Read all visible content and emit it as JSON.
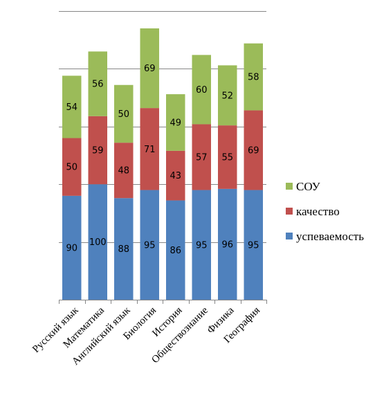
{
  "chart_data": {
    "type": "bar",
    "stacked": true,
    "categories": [
      "Русский язык",
      "Математика",
      "Английский язык",
      "Биология",
      "История",
      "Обществознание",
      "Физика",
      "География"
    ],
    "series": [
      {
        "name": "успеваемость",
        "color": "#4F81BD",
        "values": [
          90,
          100,
          88,
          95,
          86,
          95,
          96,
          95
        ]
      },
      {
        "name": "качество",
        "color": "#C0504D",
        "values": [
          50,
          59,
          48,
          71,
          43,
          57,
          55,
          69
        ]
      },
      {
        "name": "СОУ",
        "color": "#9BBB59",
        "values": [
          54,
          56,
          50,
          69,
          49,
          60,
          52,
          58
        ]
      }
    ],
    "ylim": [
      0,
      250
    ],
    "ytick_step": 50,
    "grid": true,
    "legend_position": "right",
    "legend_order": [
      "СОУ",
      "качество",
      "успеваемость"
    ]
  }
}
